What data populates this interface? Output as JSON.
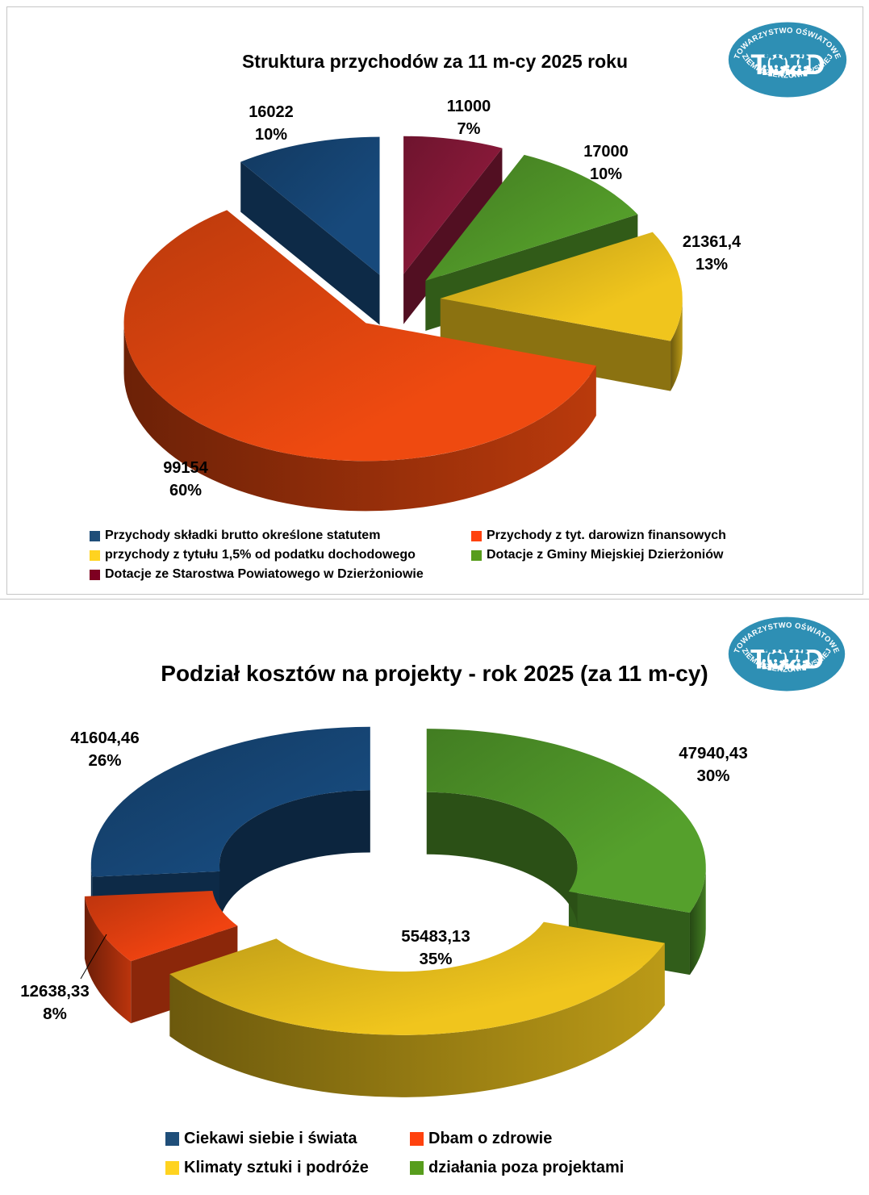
{
  "page": {
    "background": "#ffffff",
    "panel_border_color": "#c6c6c6"
  },
  "logo": {
    "top_text": "TOWARZYSTWO OŚWIATOWE",
    "acronym": "TOZD",
    "bottom_text": "ZIEMI DZIERŻONIOWSKIEJ",
    "color": "#2e8fb4"
  },
  "chart_data": [
    {
      "type": "pie",
      "style": "3d-exploded",
      "title": "Struktura przychodów za 11 m-cy 2025 roku",
      "legend_position": "bottom",
      "slices": [
        {
          "name": "skladki",
          "label": "Przychody składki brutto określone statutem",
          "value": 16022,
          "value_label": "16022",
          "pct_label": "10%",
          "color": "#17497b",
          "legend_color": "#1f4e79"
        },
        {
          "name": "darowizny",
          "label": "Przychody z tyt. darowizn finansowych",
          "value": 99154,
          "value_label": "99154",
          "pct_label": "60%",
          "color": "#ef4a10",
          "legend_color": "#ff420e"
        },
        {
          "name": "podatek",
          "label": "przychody z tytułu 1,5% od podatku dochodowego",
          "value": 21361.4,
          "value_label": "21361,4",
          "pct_label": "13%",
          "color": "#f0c51d",
          "legend_color": "#ffd320"
        },
        {
          "name": "gmina",
          "label": "Dotacje z Gminy Miejskiej Dzierżoniów",
          "value": 17000,
          "value_label": "17000",
          "pct_label": "10%",
          "color": "#549d2a",
          "legend_color": "#579d1c"
        },
        {
          "name": "starostwo",
          "label": "Dotacje ze Starostwa Powiatowego w Dzierżoniowie",
          "value": 11000,
          "value_label": "11000",
          "pct_label": "7%",
          "color": "#8d1a3b",
          "legend_color": "#7e0021"
        }
      ]
    },
    {
      "type": "donut",
      "style": "3d-exploded",
      "title": "Podział kosztów na projekty - rok 2025 (za 11 m-cy)",
      "legend_position": "bottom",
      "slices": [
        {
          "name": "ciekawi",
          "label": "Ciekawi siebie i świata",
          "value": 41604.46,
          "value_label": "41604,46",
          "pct_label": "26%",
          "color": "#17497b",
          "legend_color": "#1f4e79"
        },
        {
          "name": "dbam",
          "label": "Dbam o zdrowie",
          "value": 12638.33,
          "value_label": "12638,33",
          "pct_label": "8%",
          "color": "#f04311",
          "legend_color": "#ff420e"
        },
        {
          "name": "klimaty",
          "label": "Klimaty sztuki i podróże",
          "value": 55483.13,
          "value_label": "55483,13",
          "pct_label": "35%",
          "color": "#f0c51d",
          "legend_color": "#ffd320"
        },
        {
          "name": "dzialania",
          "label": "działania poza projektami",
          "value": 47940.43,
          "value_label": "47940,43",
          "pct_label": "30%",
          "color": "#55a02c",
          "legend_color": "#579d1c"
        }
      ]
    }
  ]
}
